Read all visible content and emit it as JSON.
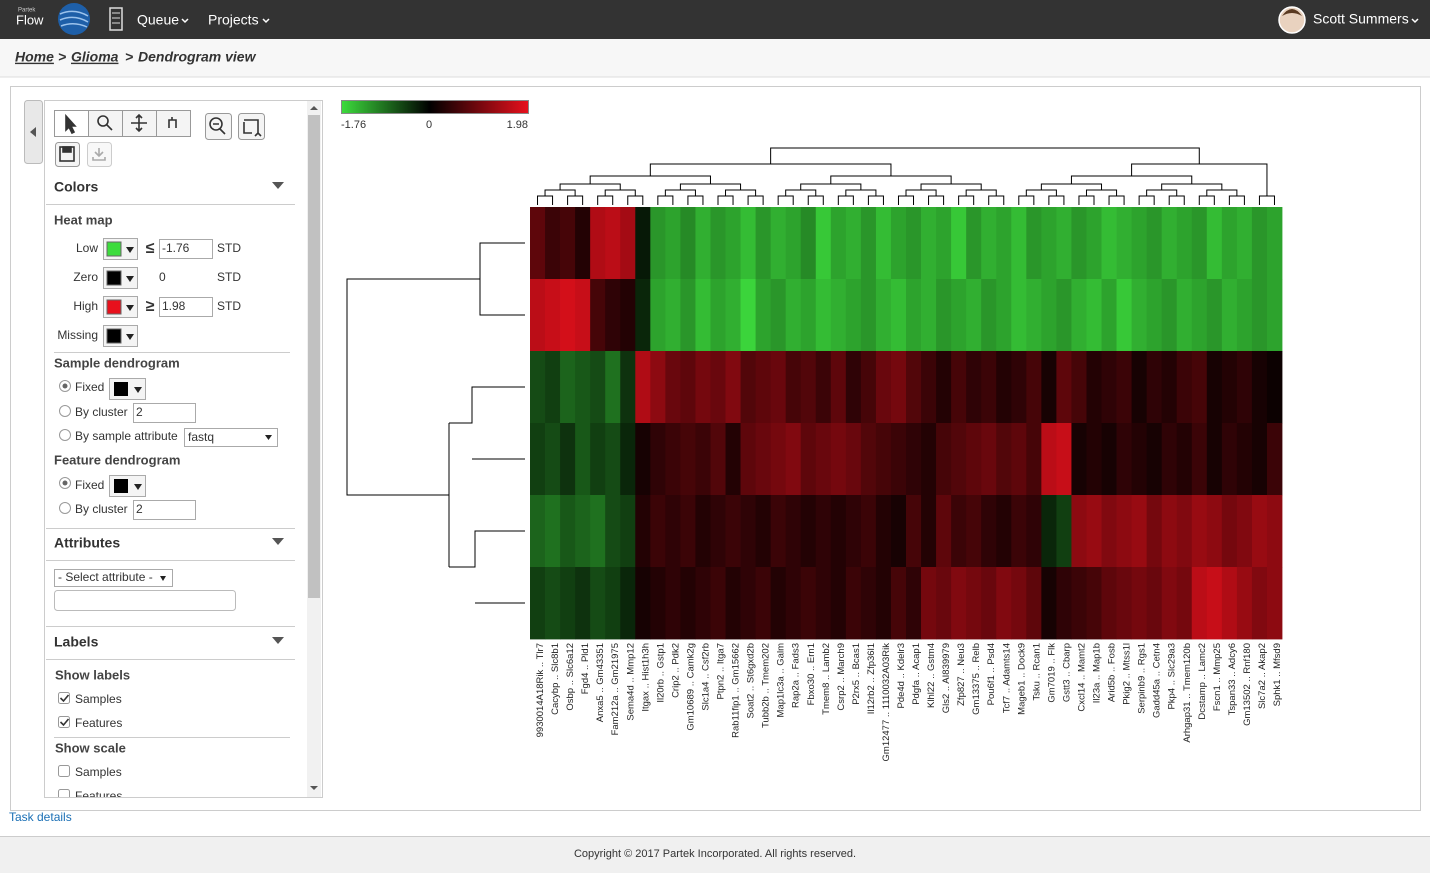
{
  "nav": {
    "brand_small": "Partek",
    "brand": "Flow",
    "menu": [
      "Queue",
      "Projects"
    ],
    "user": "Scott Summers"
  },
  "breadcrumb": {
    "items": [
      "Home",
      "Glioma"
    ],
    "separator": ">",
    "current": "Dendrogram view"
  },
  "panel": {
    "colors": {
      "title": "Colors",
      "heatmap": {
        "title": "Heat map",
        "low": {
          "label": "Low",
          "color": "#3ddc3d",
          "op": "≤",
          "value": -1.76,
          "unit": "STD"
        },
        "zero": {
          "label": "Zero",
          "color": "#000000",
          "value": 0,
          "unit": "STD"
        },
        "high": {
          "label": "High",
          "color": "#e8101c",
          "op": "≥",
          "value": 1.98,
          "unit": "STD"
        },
        "missing": {
          "label": "Missing",
          "color": "#000000"
        }
      },
      "sample_dendrogram": {
        "title": "Sample dendrogram",
        "fixed": "Fixed",
        "by_cluster": "By cluster",
        "clusters": 2,
        "by_attribute": "By sample attribute",
        "attribute": "fastq"
      },
      "feature_dendrogram": {
        "title": "Feature dendrogram",
        "fixed": "Fixed",
        "by_cluster": "By cluster",
        "clusters": 2
      }
    },
    "attributes": {
      "title": "Attributes",
      "select": "- Select attribute -"
    },
    "labels": {
      "title": "Labels",
      "show_labels": "Show labels",
      "samples": "Samples",
      "features": "Features",
      "show_scale": "Show scale",
      "scale_samples": "Samples",
      "scale_features": "Features"
    }
  },
  "heatmap": {
    "features": [
      "9930014A18Rik .. Tlr7",
      "Cacybp .. Slc8b1",
      "Osbp .. Slc6a12",
      "Fgd4 .. Pld1",
      "Anxa5 .. Gm43351",
      "Fam212a .. Gm21975",
      "Sema4d .. Mmp12",
      "Itgax .. Hist1h3h",
      "Il20rb .. Gstp1",
      "Crip2 .. Pdk2",
      "Gm10689 .. Camk2g",
      "Slc1a4 .. Csf2rb",
      "Ptpn2 .. Itga7",
      "Rab11fip1 .. Gm15662",
      "Soat2 .. St6gxd2b",
      "Tubb2b .. Tmem202",
      "Map1lc3a .. Galm",
      "Rap2a .. Fads3",
      "Fbxo30 .. Ern1",
      "Tmem8 .. Lamb2",
      "Csrp2 .. March9",
      "P2rx5 .. Bcas1",
      "Il12rb2 .. Zfp36l1",
      "Gm12477 .. 1110032A03Rik",
      "Pde4d .. Kdelr3",
      "Pdgfa .. Acap1",
      "Klhl22 .. Gstm4",
      "Gls2 .. AI839979",
      "Zfp827 .. Neu3",
      "Gm13375 .. Relb",
      "Pou6f1 .. Psd4",
      "Tcf7 .. Adamts14",
      "Mageb1 .. Dock9",
      "Tsku .. Rcan1",
      "Gm7019 .. Flk",
      "Gstt3 .. Cbarp",
      "Cxcl14 .. Mamt2",
      "Il23a .. Map1b",
      "Arid5b .. Fosb",
      "Pkig2 .. Mtss1l",
      "Serpinb9 .. Rgs1",
      "Gadd45a .. Cetn4",
      "Pkp4 .. Slc29a3",
      "Arhgap31 .. Tmem120b",
      "Dcstamp .. Lamc2",
      "Fscn1 .. Mmp25",
      "Tspan33 .. Adcy6",
      "Gm13502 .. Rnf180",
      "Slc7a2 .. Akap2",
      "Sphk1 .. Mfsd9"
    ],
    "values": [
      [
        0.8,
        0.5,
        0.6,
        0.3,
        1.5,
        1.6,
        1.4,
        -0.2,
        -1.2,
        -1.3,
        -1.1,
        -1.4,
        -1.2,
        -1.3,
        -1.5,
        -1.2,
        -1.4,
        -1.3,
        -1.1,
        -1.6,
        -1.3,
        -1.4,
        -1.2,
        -1.5,
        -1.3,
        -1.2,
        -1.4,
        -1.3,
        -1.6,
        -1.2,
        -1.4,
        -1.3,
        -1.5,
        -1.2,
        -1.3,
        -1.4,
        -1.2,
        -1.3,
        -1.5,
        -1.4,
        -1.3,
        -1.2,
        -1.4,
        -1.3,
        -1.2,
        -1.5,
        -1.3,
        -1.4,
        -1.2,
        -1.3
      ],
      [
        1.6,
        1.7,
        1.8,
        1.7,
        0.6,
        0.4,
        0.3,
        -0.3,
        -1.3,
        -1.4,
        -1.2,
        -1.5,
        -1.3,
        -1.4,
        -1.7,
        -1.3,
        -1.2,
        -1.4,
        -1.3,
        -1.5,
        -1.4,
        -1.3,
        -1.2,
        -1.4,
        -1.5,
        -1.3,
        -1.4,
        -1.2,
        -1.3,
        -1.4,
        -1.2,
        -1.3,
        -1.5,
        -1.4,
        -1.3,
        -1.2,
        -1.4,
        -1.5,
        -1.3,
        -1.6,
        -1.4,
        -1.3,
        -1.2,
        -1.4,
        -1.3,
        -1.2,
        -1.4,
        -1.3,
        -1.2,
        -1.3
      ],
      [
        -0.6,
        -0.5,
        -0.8,
        -0.7,
        -0.6,
        -0.9,
        -0.4,
        1.5,
        1.2,
        0.9,
        0.8,
        1.0,
        0.9,
        1.1,
        0.7,
        0.8,
        0.9,
        0.6,
        0.7,
        0.5,
        0.8,
        0.4,
        0.6,
        0.9,
        1.0,
        0.7,
        0.5,
        0.3,
        0.6,
        0.4,
        0.5,
        0.3,
        0.4,
        0.6,
        0.2,
        0.8,
        0.6,
        0.3,
        0.4,
        0.5,
        0.2,
        0.4,
        0.3,
        0.5,
        0.6,
        0.2,
        0.3,
        0.4,
        0.2,
        0.1
      ],
      [
        -0.5,
        -0.6,
        -0.4,
        -0.7,
        -0.5,
        -0.6,
        -0.3,
        0.2,
        0.4,
        0.5,
        0.6,
        0.5,
        0.7,
        0.3,
        0.8,
        0.9,
        1.0,
        1.1,
        0.8,
        0.9,
        1.0,
        0.9,
        0.7,
        0.6,
        0.5,
        0.4,
        0.3,
        0.6,
        0.7,
        0.8,
        0.9,
        0.7,
        0.8,
        0.6,
        1.6,
        1.7,
        0.2,
        0.3,
        0.2,
        0.4,
        0.3,
        0.2,
        0.4,
        0.3,
        0.5,
        0.2,
        0.4,
        0.3,
        0.2,
        0.5
      ],
      [
        -0.8,
        -0.9,
        -0.7,
        -0.8,
        -0.9,
        -0.6,
        -0.5,
        0.3,
        0.5,
        0.4,
        0.5,
        0.3,
        0.4,
        0.5,
        0.4,
        0.3,
        0.5,
        0.4,
        0.3,
        0.4,
        0.3,
        0.4,
        0.5,
        0.3,
        0.2,
        0.6,
        0.3,
        0.8,
        0.5,
        0.6,
        0.4,
        0.3,
        0.5,
        0.4,
        -0.3,
        -0.5,
        1.2,
        1.3,
        1.1,
        1.2,
        1.3,
        1.0,
        1.2,
        1.1,
        1.3,
        1.2,
        1.0,
        1.1,
        1.3,
        1.2
      ],
      [
        -0.5,
        -0.6,
        -0.5,
        -0.4,
        -0.6,
        -0.5,
        -0.3,
        0.2,
        0.3,
        0.4,
        0.3,
        0.4,
        0.5,
        0.3,
        0.4,
        0.5,
        0.3,
        0.4,
        0.5,
        0.4,
        0.3,
        0.5,
        0.4,
        0.3,
        0.6,
        0.4,
        1.0,
        0.9,
        1.1,
        1.0,
        0.9,
        1.1,
        1.0,
        0.8,
        0.2,
        0.4,
        0.5,
        0.6,
        0.8,
        0.9,
        1.0,
        0.9,
        1.1,
        1.0,
        1.6,
        1.7,
        1.5,
        1.3,
        1.1,
        1.2
      ]
    ]
  },
  "task_details": "Task details",
  "footer": "Copyright © 2017 Partek Incorporated. All rights reserved."
}
